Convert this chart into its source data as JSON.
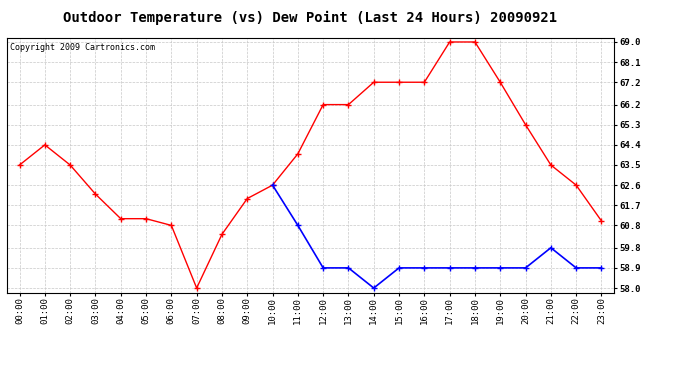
{
  "title": "Outdoor Temperature (vs) Dew Point (Last 24 Hours) 20090921",
  "copyright": "Copyright 2009 Cartronics.com",
  "hours": [
    "00:00",
    "01:00",
    "02:00",
    "03:00",
    "04:00",
    "05:00",
    "06:00",
    "07:00",
    "08:00",
    "09:00",
    "10:00",
    "11:00",
    "12:00",
    "13:00",
    "14:00",
    "15:00",
    "16:00",
    "17:00",
    "18:00",
    "19:00",
    "20:00",
    "21:00",
    "22:00",
    "23:00"
  ],
  "temp": [
    63.5,
    64.4,
    63.5,
    62.2,
    61.1,
    61.1,
    60.8,
    58.0,
    60.4,
    62.0,
    62.6,
    64.0,
    66.2,
    66.2,
    67.2,
    67.2,
    67.2,
    69.0,
    69.0,
    67.2,
    65.3,
    63.5,
    62.6,
    61.0
  ],
  "dew": [
    null,
    null,
    null,
    null,
    null,
    null,
    null,
    null,
    null,
    null,
    62.6,
    60.8,
    58.9,
    58.9,
    58.0,
    58.9,
    58.9,
    58.9,
    58.9,
    58.9,
    58.9,
    59.8,
    58.9,
    58.9
  ],
  "temp_color": "#ff0000",
  "dew_color": "#0000ff",
  "bg_color": "#ffffff",
  "plot_bg_color": "#ffffff",
  "grid_color": "#c8c8c8",
  "ylim": [
    57.8,
    69.2
  ],
  "yticks": [
    58.0,
    58.9,
    59.8,
    60.8,
    61.7,
    62.6,
    63.5,
    64.4,
    65.3,
    66.2,
    67.2,
    68.1,
    69.0
  ],
  "title_fontsize": 10,
  "copyright_fontsize": 6,
  "tick_fontsize": 6.5
}
